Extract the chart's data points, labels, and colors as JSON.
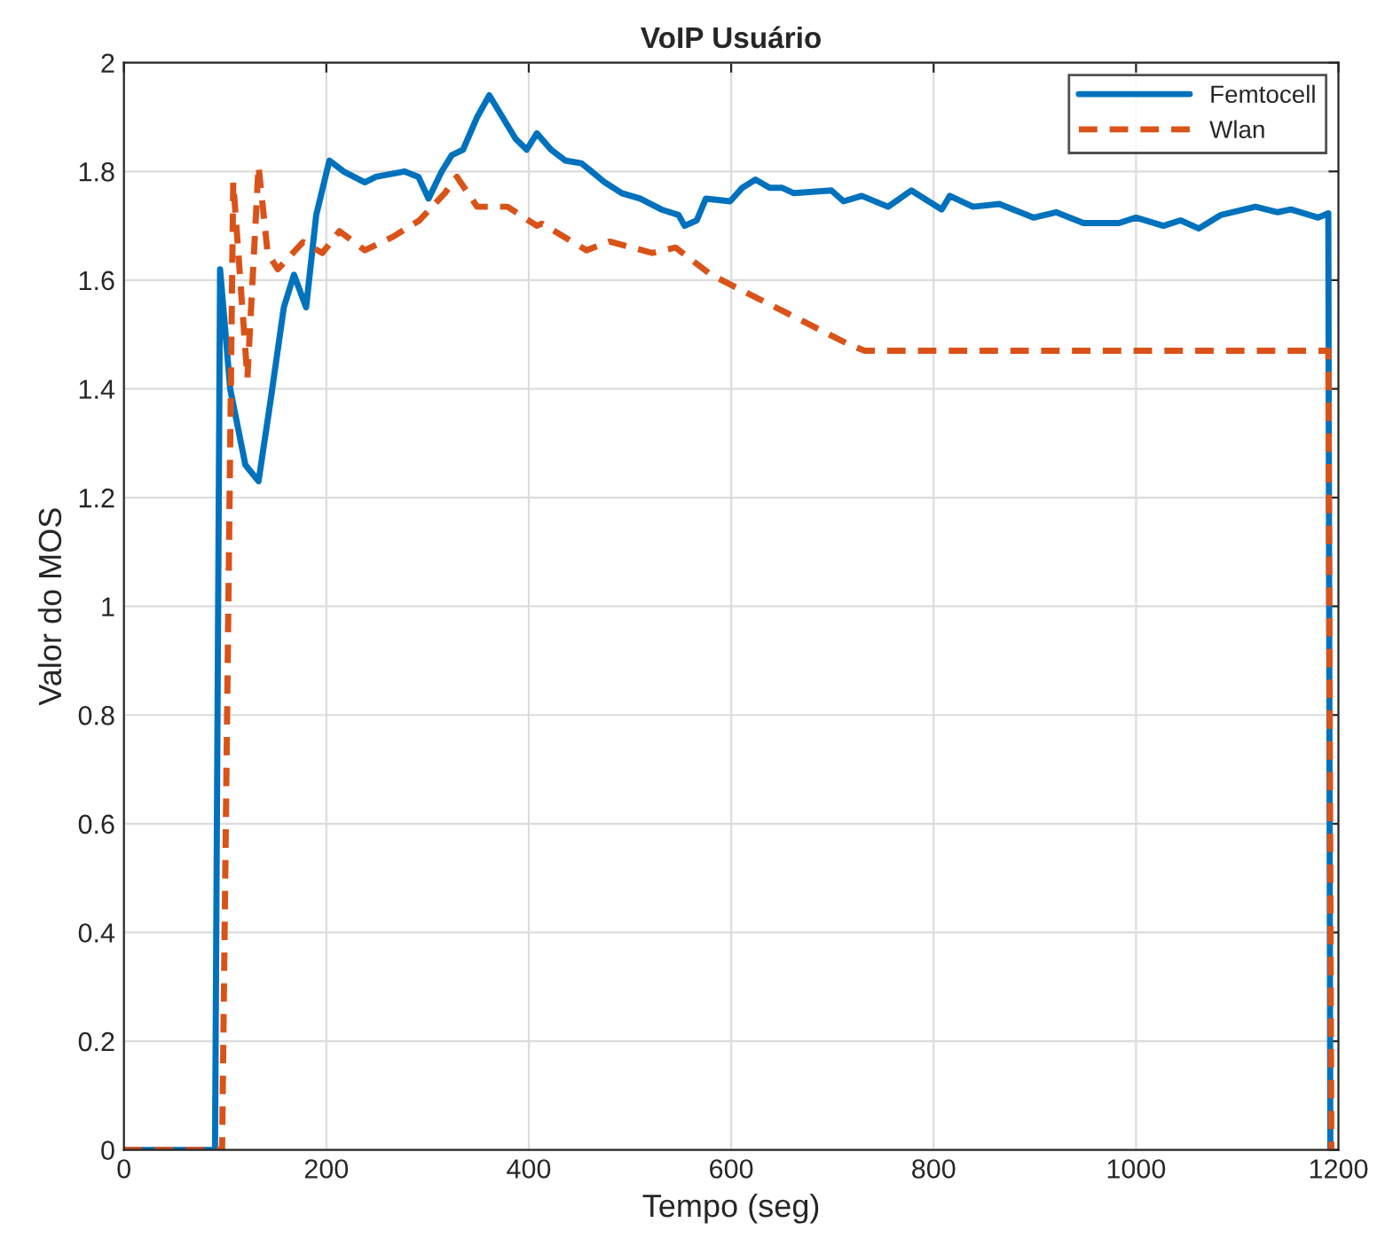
{
  "chart_data": {
    "type": "line",
    "title": "VoIP Usuário",
    "xlabel": "Tempo (seg)",
    "ylabel": "Valor do MOS",
    "xlim": [
      0,
      1200
    ],
    "xticks": [
      0,
      200,
      400,
      600,
      800,
      1000,
      1200
    ],
    "ylim": [
      0,
      2
    ],
    "yticks": [
      0,
      {
        "value": 0.2,
        "label": "0.2"
      },
      {
        "value": 0.4,
        "label": "0.4"
      },
      {
        "value": 0.6,
        "label": "0.6"
      },
      {
        "value": 0.8,
        "label": "0.8"
      },
      1,
      {
        "value": 1.2,
        "label": "1.2"
      },
      {
        "value": 1.4,
        "label": "1.4"
      },
      {
        "value": 1.6,
        "label": "1.6"
      },
      {
        "value": 1.8,
        "label": "1.8"
      },
      2
    ],
    "grid": true,
    "legend": "top right",
    "series": [
      {
        "name": "Femtocell",
        "color": "#0072bd",
        "line_style": "solid",
        "x": [
          0,
          90,
          95,
          105,
          120,
          133,
          145,
          158,
          168,
          180,
          190,
          203,
          217,
          238,
          249,
          277,
          291,
          301,
          314,
          324,
          335,
          349,
          361,
          374,
          387,
          398,
          408,
          422,
          436,
          452,
          462,
          475,
          492,
          510,
          531,
          548,
          554,
          566,
          575,
          599,
          611,
          624,
          638,
          650,
          662,
          699,
          711,
          729,
          755,
          778,
          808,
          816,
          839,
          865,
          899,
          921,
          948,
          983,
          1000,
          1027,
          1044,
          1062,
          1084,
          1118,
          1140,
          1153,
          1180,
          1190,
          1192
        ],
        "values": [
          0,
          0,
          1.62,
          1.4,
          1.26,
          1.23,
          1.38,
          1.55,
          1.61,
          1.55,
          1.72,
          1.82,
          1.8,
          1.78,
          1.79,
          1.8,
          1.79,
          1.75,
          1.8,
          1.83,
          1.84,
          1.9,
          1.94,
          1.9,
          1.86,
          1.84,
          1.87,
          1.84,
          1.82,
          1.815,
          1.8,
          1.78,
          1.76,
          1.75,
          1.73,
          1.72,
          1.7,
          1.71,
          1.75,
          1.745,
          1.77,
          1.785,
          1.77,
          1.77,
          1.76,
          1.765,
          1.745,
          1.755,
          1.735,
          1.765,
          1.73,
          1.755,
          1.735,
          1.74,
          1.715,
          1.725,
          1.705,
          1.705,
          1.715,
          1.7,
          1.71,
          1.695,
          1.72,
          1.735,
          1.725,
          1.73,
          1.715,
          1.723,
          0
        ]
      },
      {
        "name": "Wlan",
        "color": "#d95319",
        "line_style": "dashed",
        "x": [
          0,
          97,
          108,
          122,
          133,
          142,
          152,
          177,
          196,
          213,
          238,
          266,
          292,
          317,
          329,
          349,
          379,
          408,
          413,
          457,
          480,
          522,
          545,
          580,
          715,
          732,
          1190,
          1193
        ],
        "values": [
          0,
          0,
          1.78,
          1.42,
          1.81,
          1.65,
          1.62,
          1.67,
          1.65,
          1.69,
          1.655,
          1.68,
          1.71,
          1.76,
          1.79,
          1.735,
          1.735,
          1.7,
          1.704,
          1.655,
          1.671,
          1.65,
          1.66,
          1.61,
          1.483,
          1.47,
          1.47,
          0
        ]
      }
    ]
  }
}
